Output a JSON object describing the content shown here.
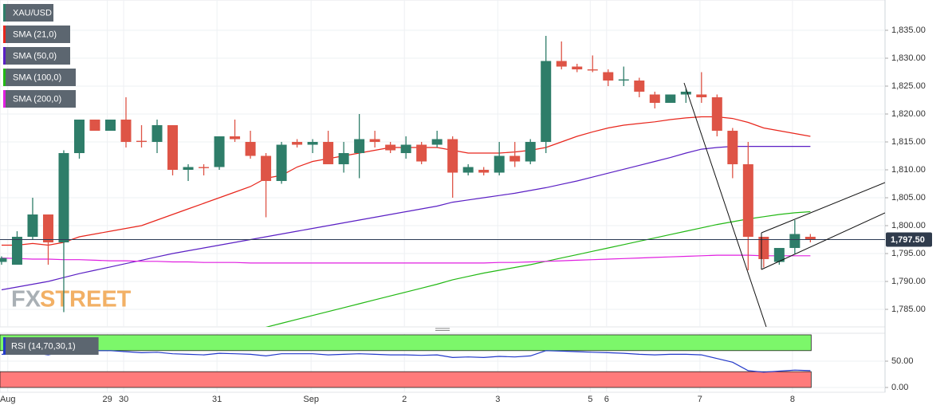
{
  "chart_data": [
    {
      "type": "candlestick",
      "ohlc": {
        "name": "XAU/USD",
        "up_color": "#2e7d69",
        "down_color": "#de5446",
        "open": [
          1793.5,
          1793,
          1798,
          1802,
          1797,
          1813,
          1819,
          1817,
          1819,
          1815.2,
          1815,
          1818,
          1810,
          1810.5,
          1810.5,
          1816,
          1815,
          1812.5,
          1808,
          1815,
          1814.5,
          1815,
          1811,
          1813,
          1815.5,
          1814.5,
          1813,
          1814.5,
          1814.5,
          1815.5,
          1809.5,
          1810,
          1809.5,
          1812.5,
          1811.5,
          1815,
          1829.5,
          1828.5,
          1828,
          1827.5,
          1826,
          1826,
          1823.5,
          1822,
          1823.5,
          1823.5,
          1823,
          1817,
          1811,
          1798,
          1793.5,
          1796,
          1798
        ],
        "high": [
          1794.5,
          1799,
          1805,
          1802,
          1813.5,
          1819,
          1819,
          1819,
          1823,
          1818,
          1819,
          1818,
          1811,
          1811,
          1816,
          1819,
          1817,
          1813,
          1815,
          1815.5,
          1815.5,
          1817,
          1815,
          1820,
          1817,
          1815,
          1816,
          1815,
          1817,
          1816,
          1811,
          1810.5,
          1815,
          1815,
          1815.5,
          1834,
          1833,
          1829,
          1830.5,
          1828,
          1828.5,
          1826.5,
          1824,
          1823.5,
          1824.5,
          1827.5,
          1823.5,
          1817.5,
          1815,
          1798,
          1796,
          1801,
          1798.5
        ],
        "low": [
          1793,
          1793,
          1797.5,
          1793,
          1784.5,
          1812,
          1817,
          1817,
          1814,
          1814,
          1813,
          1809,
          1808,
          1809,
          1810,
          1815,
          1812,
          1801.5,
          1807.5,
          1814,
          1813,
          1811,
          1809.5,
          1808.5,
          1814,
          1813,
          1812,
          1811,
          1814,
          1805,
          1809,
          1809,
          1809,
          1810.5,
          1811,
          1813,
          1828,
          1827.5,
          1827.5,
          1825,
          1825,
          1823,
          1821,
          1822,
          1822,
          1822,
          1816,
          1808.5,
          1792,
          1792.5,
          1793,
          1795,
          1797
        ],
        "close": [
          1794.2,
          1798,
          1802,
          1797,
          1813,
          1819,
          1817,
          1819,
          1815,
          1815,
          1818,
          1810,
          1810.5,
          1810.3,
          1816,
          1815.5,
          1812.5,
          1808,
          1814.5,
          1814.5,
          1815,
          1811,
          1813,
          1815.5,
          1815,
          1813.5,
          1814.5,
          1811.5,
          1815.5,
          1809.5,
          1810.5,
          1809.5,
          1812.5,
          1811.5,
          1815,
          1829.5,
          1828.5,
          1828,
          1827.8,
          1826,
          1826.2,
          1824,
          1822,
          1823.5,
          1824,
          1823,
          1817,
          1811,
          1798,
          1794,
          1796,
          1798.5,
          1797.5
        ]
      },
      "series": [
        {
          "name": "SMA (21,0)",
          "color": "#e8261c",
          "values": [
            1796.5,
            1796.5,
            1796.8,
            1796.5,
            1797,
            1798,
            1798.5,
            1799,
            1799.5,
            1800,
            1801,
            1802,
            1803,
            1804,
            1805,
            1806,
            1807,
            1808.5,
            1809,
            1810.5,
            1811.5,
            1812,
            1812.5,
            1813,
            1813.5,
            1814,
            1814,
            1814,
            1814,
            1813.5,
            1813,
            1813,
            1813,
            1813.2,
            1813.5,
            1814,
            1815,
            1816,
            1816.8,
            1817.5,
            1818,
            1818.3,
            1818.6,
            1819,
            1819.3,
            1819.5,
            1819.5,
            1819.2,
            1818.5,
            1817.5,
            1817,
            1816.5,
            1816
          ]
        },
        {
          "name": "SMA (50,0)",
          "color": "#5a1fc4",
          "values": [
            1788.5,
            1789,
            1789.5,
            1790,
            1790.7,
            1791.4,
            1792,
            1792.6,
            1793.2,
            1793.8,
            1794.4,
            1795,
            1795.5,
            1796,
            1796.5,
            1797,
            1797.5,
            1798,
            1798.5,
            1799,
            1799.5,
            1800,
            1800.5,
            1801,
            1801.5,
            1802,
            1802.5,
            1803,
            1803.5,
            1804.2,
            1804.6,
            1805,
            1805.4,
            1805.8,
            1806.3,
            1806.8,
            1807.4,
            1808,
            1808.7,
            1809.4,
            1810.1,
            1810.8,
            1811.5,
            1812.2,
            1813,
            1813.7,
            1814,
            1814.2,
            1814.2,
            1814.2,
            1814.2,
            1814.2,
            1814.2
          ]
        },
        {
          "name": "SMA (100,0)",
          "color": "#22b814",
          "values": [
            null,
            null,
            null,
            null,
            null,
            null,
            null,
            null,
            null,
            null,
            null,
            null,
            null,
            null,
            null,
            null,
            null,
            1781.8,
            1782.5,
            1783.2,
            1783.9,
            1784.6,
            1785.3,
            1786,
            1786.7,
            1787.4,
            1788.1,
            1788.8,
            1789.5,
            1790.3,
            1790.9,
            1791.5,
            1792,
            1792.5,
            1793,
            1793.6,
            1794.2,
            1794.8,
            1795.4,
            1796,
            1796.6,
            1797.2,
            1797.8,
            1798.4,
            1799,
            1799.6,
            1800.2,
            1800.7,
            1801.2,
            1801.6,
            1802,
            1802.3,
            1802.5
          ]
        },
        {
          "name": "SMA (200,0)",
          "color": "#e01fe0",
          "values": [
            1794.2,
            1794.1,
            1794,
            1794,
            1793.9,
            1793.9,
            1793.8,
            1793.7,
            1793.7,
            1793.6,
            1793.6,
            1793.5,
            1793.5,
            1793.4,
            1793.4,
            1793.4,
            1793.3,
            1793.3,
            1793.3,
            1793.3,
            1793.3,
            1793.3,
            1793.3,
            1793.3,
            1793.3,
            1793.3,
            1793.3,
            1793.3,
            1793.3,
            1793.3,
            1793.3,
            1793.3,
            1793.4,
            1793.4,
            1793.5,
            1793.6,
            1793.7,
            1793.8,
            1793.9,
            1794,
            1794.1,
            1794.2,
            1794.3,
            1794.4,
            1794.5,
            1794.6,
            1794.7,
            1794.7,
            1794.7,
            1794.6,
            1794.6,
            1794.6,
            1794.6
          ]
        }
      ],
      "last_price": {
        "value": 1797.5,
        "label": "1,797.50"
      },
      "xlim": [
        -0.1,
        56.8
      ],
      "ylim": [
        1781.86,
        1840.43
      ],
      "yticks": [
        {
          "value": 1785,
          "label": "1,785.00"
        },
        {
          "value": 1790,
          "label": "1,790.00"
        },
        {
          "value": 1795,
          "label": "1,795.00"
        },
        {
          "value": 1800,
          "label": "1,800.00"
        },
        {
          "value": 1805,
          "label": "1,805.00"
        },
        {
          "value": 1810,
          "label": "1,810.00"
        },
        {
          "value": 1815,
          "label": "1,815.00"
        },
        {
          "value": 1820,
          "label": "1,820.00"
        },
        {
          "value": 1825,
          "label": "1,825.00"
        },
        {
          "value": 1830,
          "label": "1,830.00"
        },
        {
          "value": 1835,
          "label": "1,835.00"
        }
      ],
      "grid": true,
      "watermark": {
        "left": "FX",
        "right": "STREET"
      }
    },
    {
      "type": "line",
      "series": [
        {
          "name": "RSI (14,70,30,1)",
          "color": "#2339c9",
          "values": [
            63,
            64,
            66,
            62,
            68,
            71,
            70,
            70,
            68,
            66,
            67,
            64,
            63,
            62,
            65,
            64,
            63,
            60,
            64,
            64,
            64,
            62,
            63,
            64,
            63,
            62,
            62,
            61,
            62,
            57,
            58,
            57,
            59,
            58,
            60,
            70,
            69,
            68,
            67,
            66,
            65,
            63,
            62,
            63,
            63,
            62,
            55,
            48,
            32,
            29,
            31,
            33,
            32
          ]
        }
      ],
      "bands": [
        {
          "from": 70,
          "to": 100,
          "color": "#7cf76a"
        },
        {
          "from": 0,
          "to": 30,
          "color": "#ff7b7b"
        }
      ],
      "xlim": [
        -0.1,
        56.8
      ],
      "ylim": [
        -9.1,
        103
      ],
      "yticks": [
        {
          "value": 50,
          "label": "50.00"
        },
        {
          "value": 0,
          "label": "0.00"
        }
      ],
      "xticks": [
        {
          "value": 0.4,
          "label": "Aug"
        },
        {
          "value": 6.8,
          "label": "29"
        },
        {
          "value": 7.85,
          "label": "30"
        },
        {
          "value": 13.85,
          "label": "31"
        },
        {
          "value": 19.9,
          "label": "Sep"
        },
        {
          "value": 25.9,
          "label": "2"
        },
        {
          "value": 31.9,
          "label": "3"
        },
        {
          "value": 37.85,
          "label": "5"
        },
        {
          "value": 38.9,
          "label": "6"
        },
        {
          "value": 44.9,
          "label": "7"
        },
        {
          "value": 50.85,
          "label": "8"
        }
      ],
      "grid": true
    }
  ]
}
